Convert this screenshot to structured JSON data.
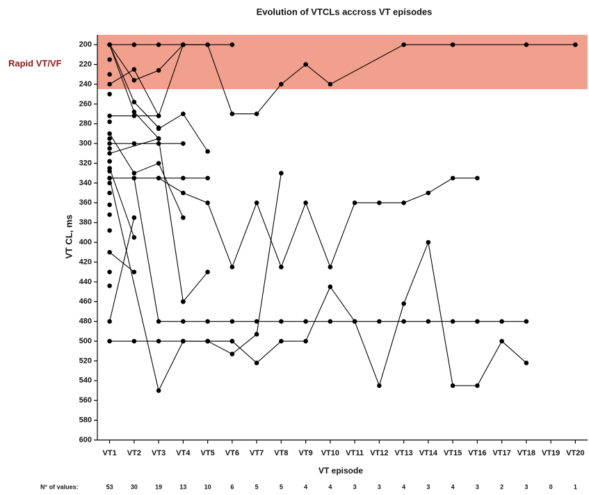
{
  "chart_data": {
    "type": "line",
    "title": "Evolution of VTCLs accross VT episodes",
    "x_label": "VT episode",
    "y_label": "VT CL, ms",
    "band": {
      "from": 190,
      "to": 245,
      "label": "Rapid VT/VF",
      "color": "#f2a08e",
      "label_color": "#8b1a1a"
    },
    "xlim": [
      0.5,
      20.5
    ],
    "xticks": [
      {
        "value": 1,
        "label": "VT1"
      },
      {
        "value": 2,
        "label": "VT2"
      },
      {
        "value": 3,
        "label": "VT3"
      },
      {
        "value": 4,
        "label": "VT4"
      },
      {
        "value": 5,
        "label": "VT5"
      },
      {
        "value": 6,
        "label": "VT6"
      },
      {
        "value": 7,
        "label": "VT7"
      },
      {
        "value": 8,
        "label": "VT8"
      },
      {
        "value": 9,
        "label": "VT9"
      },
      {
        "value": 10,
        "label": "VT10"
      },
      {
        "value": 11,
        "label": "VT11"
      },
      {
        "value": 12,
        "label": "VT12"
      },
      {
        "value": 13,
        "label": "VT13"
      },
      {
        "value": 14,
        "label": "VT14"
      },
      {
        "value": 15,
        "label": "VT15"
      },
      {
        "value": 16,
        "label": "VT16"
      },
      {
        "value": 17,
        "label": "VT17"
      },
      {
        "value": 18,
        "label": "VT18"
      },
      {
        "value": 19,
        "label": "VT19"
      },
      {
        "value": 20,
        "label": "VT20"
      }
    ],
    "ylim": [
      190,
      600
    ],
    "yticks": [
      200,
      220,
      240,
      260,
      280,
      300,
      320,
      340,
      360,
      380,
      400,
      420,
      440,
      460,
      480,
      500,
      520,
      540,
      560,
      580,
      600
    ],
    "n_label": "N° of values:",
    "n_values": [
      53,
      30,
      19,
      13,
      10,
      6,
      5,
      5,
      4,
      4,
      3,
      3,
      4,
      3,
      4,
      3,
      2,
      3,
      0,
      1
    ],
    "series": [
      {
        "color": "#000",
        "x": [
          1,
          2,
          3,
          4,
          5,
          6
        ],
        "values": [
          200,
          200,
          200,
          200,
          200,
          200
        ]
      },
      {
        "color": "#000",
        "x": [
          4,
          5,
          6,
          7,
          8,
          9,
          10,
          13,
          15,
          18,
          20
        ],
        "values": [
          200,
          200,
          270,
          270,
          240,
          220,
          240,
          200,
          200,
          200,
          200
        ]
      },
      {
        "color": "#000",
        "x": [
          1,
          2,
          3,
          4
        ],
        "values": [
          200,
          236,
          226,
          200
        ]
      },
      {
        "color": "#000",
        "x": [
          1,
          2,
          3,
          4
        ],
        "values": [
          240,
          225,
          272,
          200
        ]
      },
      {
        "color": "#000",
        "x": [
          1,
          2,
          3
        ],
        "values": [
          200,
          258,
          284
        ]
      },
      {
        "color": "#000",
        "x": [
          1,
          2,
          3
        ],
        "values": [
          200,
          268,
          295
        ]
      },
      {
        "color": "#000",
        "x": [
          2,
          3,
          4,
          5,
          6,
          7,
          8,
          9,
          10,
          11,
          12,
          13,
          14,
          15,
          16,
          17,
          18
        ],
        "values": [
          335,
          480,
          480,
          480,
          480,
          480,
          480,
          480,
          480,
          480,
          480,
          480,
          480,
          480,
          480,
          480,
          480
        ]
      },
      {
        "color": "#000",
        "x": [
          1,
          2,
          3,
          4,
          5,
          6
        ],
        "values": [
          500,
          500,
          500,
          500,
          500,
          500
        ]
      },
      {
        "color": "#000",
        "x": [
          4,
          5,
          6,
          7,
          8
        ],
        "values": [
          500,
          500,
          513,
          493,
          330
        ]
      },
      {
        "color": "#000",
        "x": [
          3,
          4,
          5,
          6,
          7,
          8,
          9,
          10,
          11,
          12,
          13,
          14,
          15,
          16
        ],
        "values": [
          335,
          350,
          360,
          425,
          360,
          425,
          360,
          425,
          360,
          360,
          360,
          350,
          335,
          335
        ]
      },
      {
        "color": "#000",
        "x": [
          5,
          6,
          7,
          8,
          9,
          10,
          11,
          12,
          13,
          14,
          15,
          16,
          17,
          18
        ],
        "values": [
          500,
          500,
          522,
          500,
          500,
          445,
          480,
          545,
          462,
          400,
          545,
          545,
          500,
          522
        ]
      },
      {
        "color": "#000",
        "x": [
          1,
          3,
          4,
          5
        ],
        "values": [
          335,
          550,
          500,
          500
        ]
      },
      {
        "color": "#000",
        "x": [
          1,
          2
        ],
        "values": [
          410,
          430
        ]
      },
      {
        "color": "#000",
        "x": [
          4,
          5
        ],
        "values": [
          460,
          430
        ]
      },
      {
        "color": "#000",
        "x": [
          1,
          2,
          3,
          4,
          5
        ],
        "values": [
          335,
          335,
          335,
          335,
          335
        ]
      },
      {
        "color": "#000",
        "x": [
          1,
          2,
          3,
          4
        ],
        "values": [
          300,
          300,
          300,
          300
        ]
      },
      {
        "color": "#000",
        "x": [
          3,
          4,
          5
        ],
        "values": [
          285,
          270,
          308
        ]
      },
      {
        "color": "#000",
        "x": [
          1,
          2,
          3,
          4
        ],
        "values": [
          290,
          330,
          320,
          375
        ]
      },
      {
        "color": "#000",
        "x": [
          1,
          2,
          3
        ],
        "values": [
          272,
          272,
          272
        ]
      },
      {
        "color": "#000",
        "x": [
          1,
          2
        ],
        "values": [
          480,
          375
        ]
      },
      {
        "color": "#000",
        "x": [
          1,
          2
        ],
        "values": [
          325,
          395
        ]
      },
      {
        "color": "#000",
        "x": [
          1,
          3,
          4
        ],
        "values": [
          310,
          295,
          460
        ]
      },
      {
        "color": "#000",
        "line": false,
        "x": [
          1,
          1,
          1,
          1,
          1,
          1,
          1,
          1,
          1,
          1,
          1,
          1,
          1,
          1,
          1,
          1
        ],
        "values": [
          215,
          230,
          250,
          278,
          295,
          318,
          328,
          340,
          350,
          362,
          372,
          388,
          430,
          444,
          305,
          318
        ]
      }
    ]
  }
}
